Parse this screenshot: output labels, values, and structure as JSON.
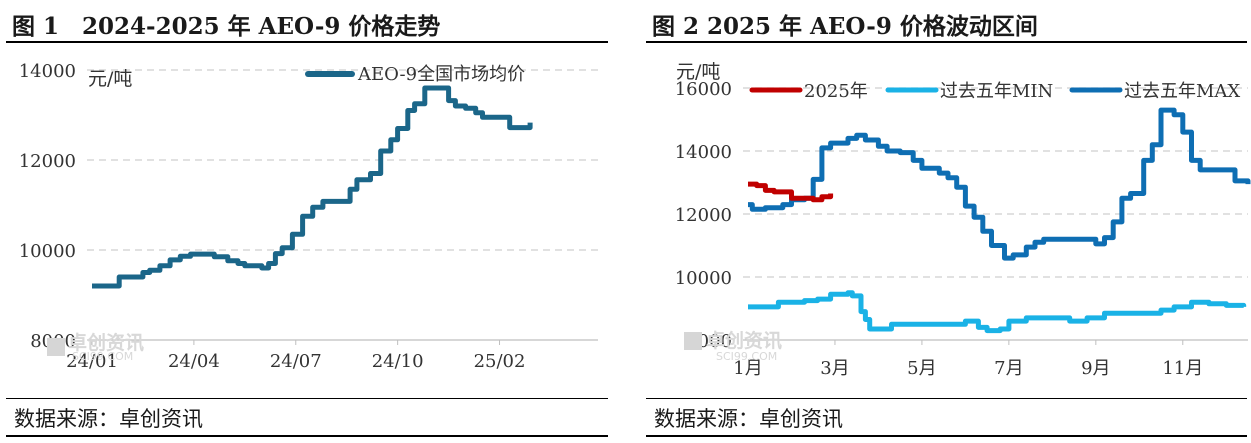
{
  "charts": [
    {
      "title": "图 1　2024-2025 年 AEO-9 价格走势",
      "source": "数据来源：卓创资讯",
      "watermark": {
        "cn": "卓创资讯",
        "en": "SCI99.COM"
      }
    },
    {
      "title": "图 2  2025 年 AEO-9 价格波动区间",
      "source": "数据来源：卓创资讯",
      "watermark": {
        "cn": "卓创资讯",
        "en": "SCI99.COM"
      }
    }
  ],
  "chart_data": [
    {
      "type": "line",
      "ylabel": "元/吨",
      "ylim": [
        8000,
        14000
      ],
      "yticks": [
        8000,
        10000,
        12000,
        14000
      ],
      "grid": true,
      "legend_position": "top-right",
      "xlim": [
        0,
        14.9
      ],
      "xticks": [
        {
          "label": "24/01",
          "x": 0
        },
        {
          "label": "24/04",
          "x": 3
        },
        {
          "label": "24/07",
          "x": 6
        },
        {
          "label": "24/10",
          "x": 9
        },
        {
          "label": "25/02",
          "x": 12
        }
      ],
      "series": [
        {
          "name": "AEO-9全国市场均价",
          "color": "#1b6689",
          "x": [
            0,
            0.6,
            0.8,
            1.3,
            1.5,
            1.7,
            2.0,
            2.3,
            2.6,
            2.9,
            3.2,
            3.6,
            4.0,
            4.3,
            4.5,
            5.0,
            5.2,
            5.4,
            5.6,
            5.9,
            6.2,
            6.5,
            6.8,
            7.2,
            7.6,
            7.8,
            8.2,
            8.5,
            8.8,
            9.0,
            9.3,
            9.5,
            9.8,
            10.2,
            10.5,
            10.7,
            11.0,
            11.3,
            11.5,
            12.0,
            12.3,
            12.5,
            12.9
          ],
          "values": [
            9200,
            9200,
            9400,
            9400,
            9500,
            9550,
            9650,
            9780,
            9860,
            9910,
            9910,
            9850,
            9760,
            9700,
            9650,
            9600,
            9700,
            9920,
            10050,
            10350,
            10750,
            10950,
            11080,
            11080,
            11350,
            11560,
            11700,
            12200,
            12450,
            12700,
            13100,
            13250,
            13600,
            13600,
            13320,
            13200,
            13150,
            13050,
            12950,
            12950,
            12720,
            12720,
            12830
          ]
        }
      ]
    },
    {
      "type": "line",
      "ylabel": "元/吨",
      "ylim": [
        8000,
        16000
      ],
      "yticks": [
        8000,
        10000,
        12000,
        14000,
        16000
      ],
      "grid": true,
      "legend_position": "top",
      "xlim": [
        1,
        12.5
      ],
      "xticks": [
        {
          "label": "1月",
          "x": 1
        },
        {
          "label": "3月",
          "x": 3
        },
        {
          "label": "5月",
          "x": 5
        },
        {
          "label": "7月",
          "x": 7
        },
        {
          "label": "9月",
          "x": 9
        },
        {
          "label": "11月",
          "x": 11
        }
      ],
      "series": [
        {
          "name": "2025年",
          "color": "#c00000",
          "x": [
            1,
            1.2,
            1.4,
            1.6,
            1.8,
            2.0,
            2.3,
            2.5,
            2.7,
            2.9
          ],
          "values": [
            12950,
            12900,
            12750,
            12700,
            12700,
            12500,
            12500,
            12450,
            12550,
            12650
          ]
        },
        {
          "name": "过去五年MIN",
          "color": "#1ab2e6",
          "x": [
            1,
            1.5,
            1.7,
            2.0,
            2.3,
            2.6,
            2.9,
            3.3,
            3.4,
            3.6,
            3.7,
            3.8,
            4.0,
            4.3,
            4.6,
            5.0,
            5.5,
            6.0,
            6.3,
            6.5,
            6.8,
            7.0,
            7.4,
            7.8,
            8.1,
            8.4,
            8.8,
            9.2,
            9.5,
            9.8,
            10.1,
            10.5,
            10.8,
            11.2,
            11.6,
            12.0,
            12.4
          ],
          "values": [
            9050,
            9050,
            9200,
            9200,
            9250,
            9300,
            9450,
            9500,
            9400,
            8900,
            8650,
            8350,
            8350,
            8500,
            8500,
            8500,
            8500,
            8600,
            8400,
            8300,
            8350,
            8600,
            8700,
            8700,
            8700,
            8600,
            8700,
            8850,
            8850,
            8850,
            8850,
            8950,
            9050,
            9200,
            9150,
            9100,
            9050
          ]
        },
        {
          "name": "过去五年MAX",
          "color": "#0e6eb3",
          "x": [
            1,
            1.1,
            1.4,
            1.8,
            2.0,
            2.3,
            2.5,
            2.7,
            2.9,
            3.3,
            3.5,
            3.7,
            4.0,
            4.2,
            4.5,
            4.8,
            5.0,
            5.4,
            5.6,
            5.8,
            6.0,
            6.2,
            6.4,
            6.6,
            6.9,
            7.1,
            7.4,
            7.6,
            7.8,
            8.0,
            8.2,
            8.6,
            9.0,
            9.2,
            9.4,
            9.6,
            9.8,
            10.1,
            10.3,
            10.5,
            10.8,
            11.0,
            11.2,
            11.4,
            11.8,
            12.2,
            12.5
          ],
          "values": [
            12300,
            12150,
            12200,
            12300,
            12450,
            12500,
            13100,
            14100,
            14250,
            14400,
            14500,
            14350,
            14150,
            14000,
            13950,
            13700,
            13450,
            13300,
            13150,
            12850,
            12250,
            11900,
            11450,
            11000,
            10600,
            10700,
            10950,
            11100,
            11200,
            11200,
            11200,
            11200,
            11050,
            11250,
            11750,
            12500,
            12650,
            13700,
            14200,
            15300,
            15150,
            14600,
            13700,
            13400,
            13400,
            13050,
            12950
          ]
        }
      ]
    }
  ]
}
